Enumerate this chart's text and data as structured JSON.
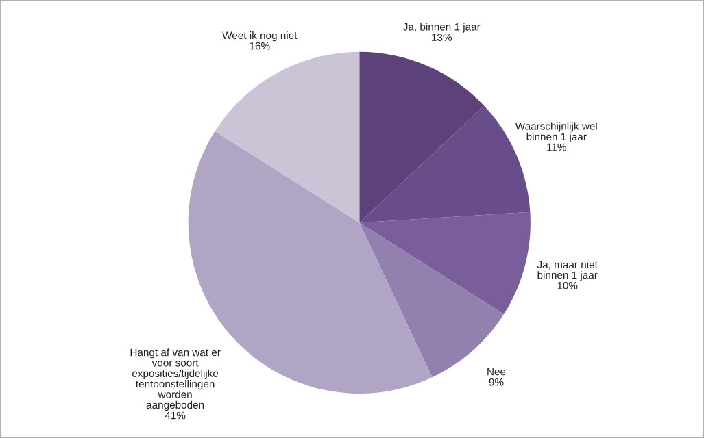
{
  "chart_data": {
    "type": "pie",
    "categories": [
      "Ja, binnen 1 jaar",
      "Waarschijnlijk wel\nbinnen 1 jaar",
      "Ja, maar niet\nbinnen 1 jaar",
      "Nee",
      "Hangt af van wat er\nvoor soort\nexposities/tijdelijke\ntentoonstellingen\nworden\naangeboden",
      "Weet ik nog niet"
    ],
    "values": [
      13,
      11,
      10,
      9,
      41,
      16
    ],
    "value_labels": [
      "13%",
      "11%",
      "10%",
      "9%",
      "41%",
      "16%"
    ],
    "colors": [
      "#5c4278",
      "#684d8a",
      "#7a5e9c",
      "#9280ae",
      "#b0a5c5",
      "#cbc4d7"
    ],
    "legend": false
  }
}
